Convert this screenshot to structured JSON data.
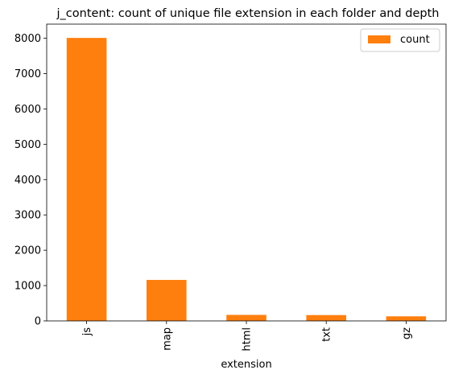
{
  "chart_data": {
    "type": "bar",
    "title": "j_content: count of unique file extension in each folder and depth",
    "xlabel": "extension",
    "ylabel": "",
    "categories": [
      "js",
      "map",
      "html",
      "txt",
      "gz"
    ],
    "series": [
      {
        "name": "count",
        "values": [
          8010,
          1160,
          170,
          165,
          130
        ],
        "color": "#ff7f0e"
      }
    ],
    "ylim": [
      0,
      8400
    ],
    "yticks": [
      0,
      1000,
      2000,
      3000,
      4000,
      5000,
      6000,
      7000,
      8000
    ],
    "legend": "top-right",
    "grid": false
  }
}
